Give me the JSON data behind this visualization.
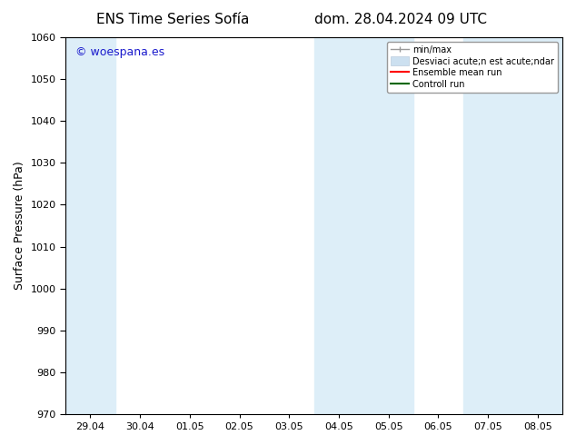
{
  "title_left": "ENS Time Series Sofía",
  "title_right": "dom. 28.04.2024 09 UTC",
  "ylabel": "Surface Pressure (hPa)",
  "ylim": [
    970,
    1060
  ],
  "yticks": [
    970,
    980,
    990,
    1000,
    1010,
    1020,
    1030,
    1040,
    1050,
    1060
  ],
  "xtick_labels": [
    "29.04",
    "30.04",
    "01.05",
    "02.05",
    "03.05",
    "04.05",
    "05.05",
    "06.05",
    "07.05",
    "08.05"
  ],
  "watermark": "© woespana.es",
  "watermark_color": "#1a1acc",
  "shaded_bands": [
    {
      "xmin": 0,
      "xmax": 1,
      "color": "#ddeef8"
    },
    {
      "xmin": 1,
      "xmax": 2,
      "color": "#ddeef8"
    },
    {
      "xmin": 5,
      "xmax": 6,
      "color": "#ddeef8"
    },
    {
      "xmin": 6,
      "xmax": 7,
      "color": "#ddeef8"
    },
    {
      "xmin": 9,
      "xmax": 10,
      "color": "#ddeef8"
    },
    {
      "xmin": 10,
      "xmax": 11,
      "color": "#ddeef8"
    }
  ],
  "legend_label_minmax": "min/max",
  "legend_label_std": "Desviaci acute;n est acute;ndar",
  "legend_label_ens": "Ensemble mean run",
  "legend_label_ctrl": "Controll run",
  "minmax_color": "#999999",
  "std_color": "#cce0f0",
  "std_edge_color": "#bbccdd",
  "ens_color": "#ff0000",
  "ctrl_color": "#006600",
  "bg_color": "#ffffff",
  "plot_bg_color": "#ffffff",
  "tick_color": "#000000",
  "spine_color": "#000000",
  "title_fontsize": 11,
  "tick_fontsize": 8,
  "ylabel_fontsize": 9
}
